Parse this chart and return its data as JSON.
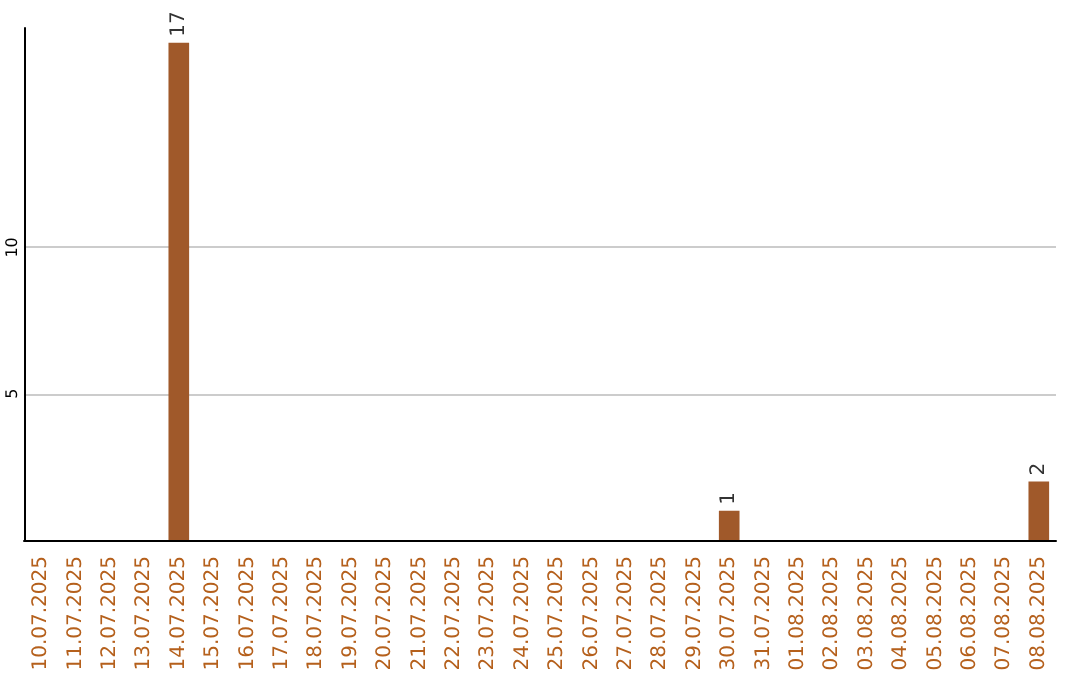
{
  "chart_data": {
    "type": "bar",
    "categories": [
      "10.07.2025",
      "11.07.2025",
      "12.07.2025",
      "13.07.2025",
      "14.07.2025",
      "15.07.2025",
      "16.07.2025",
      "17.07.2025",
      "18.07.2025",
      "19.07.2025",
      "20.07.2025",
      "21.07.2025",
      "22.07.2025",
      "23.07.2025",
      "24.07.2025",
      "25.07.2025",
      "26.07.2025",
      "27.07.2025",
      "28.07.2025",
      "29.07.2025",
      "30.07.2025",
      "31.07.2025",
      "01.08.2025",
      "02.08.2025",
      "03.08.2025",
      "04.08.2025",
      "05.08.2025",
      "06.08.2025",
      "07.08.2025",
      "08.08.2025"
    ],
    "values": [
      0,
      0,
      0,
      0,
      17,
      0,
      0,
      0,
      0,
      0,
      0,
      0,
      0,
      0,
      0,
      0,
      0,
      0,
      0,
      0,
      1,
      0,
      0,
      0,
      0,
      0,
      0,
      0,
      0,
      2
    ],
    "value_labels": [
      null,
      null,
      null,
      null,
      "17",
      null,
      null,
      null,
      null,
      null,
      null,
      null,
      null,
      null,
      null,
      null,
      null,
      null,
      null,
      null,
      "1",
      null,
      null,
      null,
      null,
      null,
      null,
      null,
      null,
      "2"
    ],
    "color": "#a0592a",
    "ylim": [
      0,
      17.5
    ],
    "yticks": [
      5,
      10
    ],
    "grid": "y"
  }
}
